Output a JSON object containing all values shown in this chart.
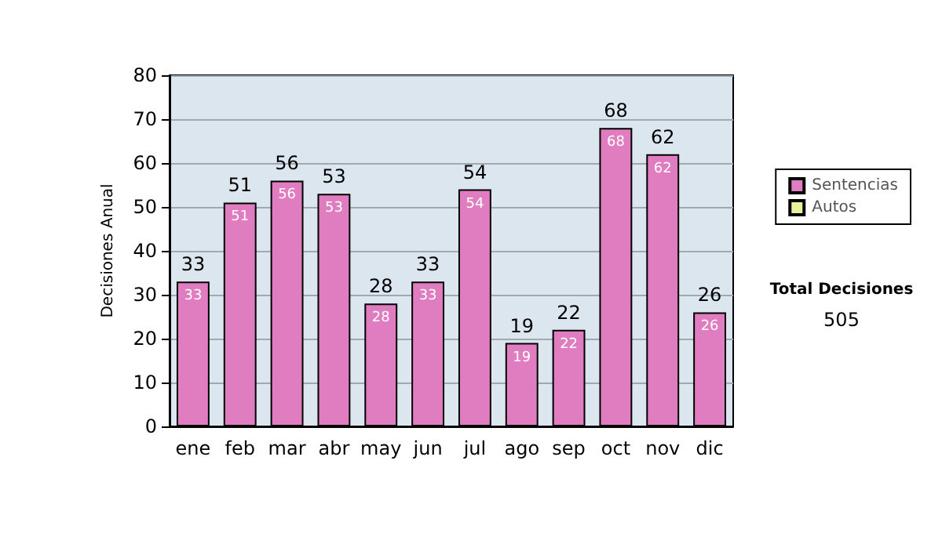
{
  "chart_data": {
    "type": "bar",
    "ylabel": "Decisiones Anual",
    "categories": [
      "ene",
      "feb",
      "mar",
      "abr",
      "may",
      "jun",
      "jul",
      "ago",
      "sep",
      "oct",
      "nov",
      "dic"
    ],
    "series": [
      {
        "name": "Sentencias",
        "color": "#e07cc0",
        "values": [
          33,
          51,
          56,
          53,
          28,
          33,
          54,
          19,
          22,
          68,
          62,
          26
        ],
        "value_labels": [
          "33",
          "51",
          "56",
          "53",
          "28",
          "33",
          "54",
          "19",
          "22",
          "68",
          "62",
          "26"
        ]
      },
      {
        "name": "Autos",
        "color": "#e8f0a0",
        "values": [
          0,
          0,
          0,
          0,
          0,
          0,
          0,
          0,
          0,
          0,
          0,
          0
        ]
      }
    ],
    "stacked": true,
    "totals": [
      "33",
      "51",
      "56",
      "53",
      "28",
      "33",
      "54",
      "19",
      "22",
      "68",
      "62",
      "26"
    ],
    "ylim": [
      0,
      80
    ],
    "yticks": [
      0,
      10,
      20,
      30,
      40,
      50,
      60,
      70,
      80
    ],
    "grid": "y",
    "legend": "right",
    "annotations": [
      "Total Decisiones",
      "505"
    ]
  }
}
